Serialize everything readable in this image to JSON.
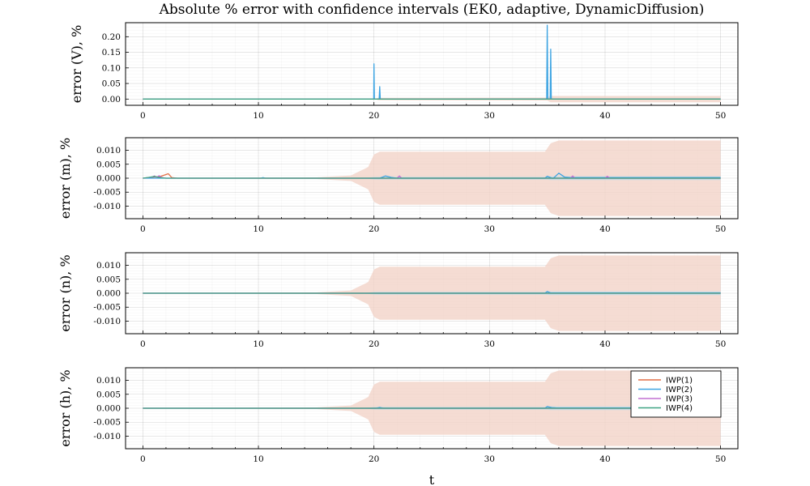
{
  "chart_data": {
    "type": "line",
    "title": "Absolute % error with confidence intervals (EK0, adaptive, DynamicDiffusion)",
    "xlabel": "t",
    "xlim": [
      0,
      50
    ],
    "xticks": [
      0,
      10,
      20,
      30,
      40,
      50
    ],
    "grid": true,
    "legend_position": "top-right of bottom panel",
    "legend": [
      "IWP(1)",
      "IWP(2)",
      "IWP(3)",
      "IWP(4)"
    ],
    "colors": {
      "IWP(1)": "#e26f46",
      "IWP(2)": "#3da4e2",
      "IWP(3)": "#c271d2",
      "IWP(4)": "#3ea483",
      "band": "#f3d3c8",
      "band_inner": "#b7dcee"
    },
    "panels": [
      {
        "ylabel": "error (V), %",
        "ylim": [
          -0.02,
          0.245
        ],
        "yticks": [
          0.0,
          0.05,
          0.1,
          0.15,
          0.2
        ],
        "ytick_labels": [
          "0.00",
          "0.05",
          "0.10",
          "0.15",
          "0.20"
        ],
        "band": [
          [
            0,
            0.0
          ],
          [
            20,
            0.0
          ],
          [
            20.4,
            0.004
          ],
          [
            35,
            0.005
          ],
          [
            35.3,
            0.01
          ],
          [
            50,
            0.01
          ]
        ],
        "series": [
          {
            "name": "IWP(1)",
            "x": [
              0,
              50
            ],
            "y": [
              0,
              0
            ]
          },
          {
            "name": "IWP(2)",
            "x": [
              0,
              19.98,
              20.0,
              20.04,
              20.45,
              20.5,
              20.55,
              34.95,
              35.0,
              35.05,
              35.25,
              35.3,
              35.35,
              50
            ],
            "y": [
              0,
              0,
              0.113,
              0,
              0,
              0.04,
              0,
              0,
              0.237,
              0,
              0,
              0.16,
              0,
              0
            ]
          },
          {
            "name": "IWP(3)",
            "x": [
              0,
              50
            ],
            "y": [
              0,
              0
            ]
          },
          {
            "name": "IWP(4)",
            "x": [
              0,
              50
            ],
            "y": [
              0,
              0
            ]
          }
        ]
      },
      {
        "ylabel": "error (m), %",
        "ylim": [
          -0.0145,
          0.0145
        ],
        "yticks": [
          -0.01,
          -0.005,
          0.0,
          0.005,
          0.01
        ],
        "ytick_labels": [
          "-0.010",
          "-0.005",
          "0.000",
          "0.005",
          "0.010"
        ],
        "band": [
          [
            0,
            0.0
          ],
          [
            15,
            0.0003
          ],
          [
            18,
            0.001
          ],
          [
            19.5,
            0.004
          ],
          [
            20,
            0.0085
          ],
          [
            20.5,
            0.0095
          ],
          [
            34.8,
            0.0095
          ],
          [
            35.3,
            0.0125
          ],
          [
            36,
            0.0135
          ],
          [
            50,
            0.0135
          ]
        ],
        "series": [
          {
            "name": "IWP(1)",
            "x": [
              0,
              1.5,
              2.2,
              2.5,
              3,
              50
            ],
            "y": [
              0,
              0.0006,
              0.0016,
              0.0002,
              0,
              0
            ]
          },
          {
            "name": "IWP(2)",
            "x": [
              0,
              10.2,
              10.4,
              10.6,
              20.5,
              21,
              21.5,
              22,
              34.8,
              35,
              35.5,
              36,
              36.5,
              37,
              50
            ],
            "y": [
              0,
              0,
              0.0002,
              0,
              0,
              0.0008,
              0.0003,
              0,
              0,
              0.0007,
              -0.0001,
              0.0018,
              0.0004,
              0.0002,
              0.0002
            ]
          },
          {
            "name": "IWP(3)",
            "x": [
              0,
              0.8,
              1.0,
              1.2,
              1.4,
              1.6,
              2,
              22,
              22.2,
              22.4,
              37,
              37.2,
              37.4,
              40,
              40.2,
              40.4,
              50
            ],
            "y": [
              0,
              0.0004,
              0.0008,
              0.0002,
              0.0009,
              0.0003,
              0,
              0,
              0.0008,
              0,
              0,
              0.0008,
              0,
              0,
              0.0007,
              0,
              0
            ]
          },
          {
            "name": "IWP(4)",
            "x": [
              0,
              0.5,
              1.0,
              1.5,
              2,
              50
            ],
            "y": [
              0,
              0.0003,
              0.0006,
              0.0002,
              0,
              0
            ]
          }
        ]
      },
      {
        "ylabel": "error (n), %",
        "ylim": [
          -0.0145,
          0.0145
        ],
        "yticks": [
          -0.01,
          -0.005,
          0.0,
          0.005,
          0.01
        ],
        "ytick_labels": [
          "-0.010",
          "-0.005",
          "0.000",
          "0.005",
          "0.010"
        ],
        "band": [
          [
            0,
            0.0
          ],
          [
            15,
            0.0003
          ],
          [
            18,
            0.001
          ],
          [
            19.5,
            0.004
          ],
          [
            20,
            0.0085
          ],
          [
            20.5,
            0.0095
          ],
          [
            34.8,
            0.0095
          ],
          [
            35.3,
            0.0125
          ],
          [
            36,
            0.0135
          ],
          [
            50,
            0.0135
          ]
        ],
        "series": [
          {
            "name": "IWP(1)",
            "x": [
              0,
              50
            ],
            "y": [
              0,
              0
            ]
          },
          {
            "name": "IWP(2)",
            "x": [
              0,
              34.8,
              35,
              35.3,
              50
            ],
            "y": [
              0,
              0,
              0.0006,
              0.0001,
              0.0001
            ]
          },
          {
            "name": "IWP(3)",
            "x": [
              0,
              50
            ],
            "y": [
              0,
              0
            ]
          },
          {
            "name": "IWP(4)",
            "x": [
              0,
              50
            ],
            "y": [
              0,
              0
            ]
          }
        ]
      },
      {
        "ylabel": "error (h), %",
        "ylim": [
          -0.0145,
          0.0145
        ],
        "yticks": [
          -0.01,
          -0.005,
          0.0,
          0.005,
          0.01
        ],
        "ytick_labels": [
          "-0.010",
          "-0.005",
          "0.000",
          "0.005",
          "0.010"
        ],
        "band": [
          [
            0,
            0.0
          ],
          [
            15,
            0.0003
          ],
          [
            18,
            0.001
          ],
          [
            19.5,
            0.004
          ],
          [
            20,
            0.0085
          ],
          [
            20.5,
            0.0095
          ],
          [
            34.8,
            0.0095
          ],
          [
            35.3,
            0.0125
          ],
          [
            36,
            0.0135
          ],
          [
            50,
            0.0135
          ]
        ],
        "series": [
          {
            "name": "IWP(1)",
            "x": [
              0,
              50
            ],
            "y": [
              0,
              0
            ]
          },
          {
            "name": "IWP(2)",
            "x": [
              0,
              20.2,
              20.5,
              20.8,
              34.8,
              35,
              35.4,
              35.8,
              50
            ],
            "y": [
              0,
              0,
              0.0003,
              0,
              0,
              0.0006,
              0.0002,
              0.0001,
              0.0001
            ]
          },
          {
            "name": "IWP(3)",
            "x": [
              0,
              50
            ],
            "y": [
              0,
              0
            ]
          },
          {
            "name": "IWP(4)",
            "x": [
              0,
              50
            ],
            "y": [
              0,
              0
            ]
          }
        ]
      }
    ]
  }
}
